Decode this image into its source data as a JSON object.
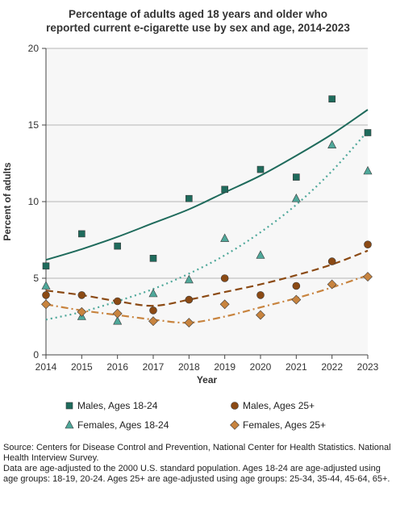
{
  "chart_data": {
    "type": "scatter",
    "title": [
      "Percentage of adults aged 18 years and older who",
      "reported current e-cigarette use by sex and age, 2014-2023"
    ],
    "xlabel": "Year",
    "ylabel": "Percent of adults",
    "x": [
      2014,
      2015,
      2016,
      2017,
      2018,
      2019,
      2020,
      2021,
      2022,
      2023
    ],
    "xlim": [
      2014,
      2023
    ],
    "ylim": [
      0,
      20
    ],
    "yticks": [
      0,
      5,
      10,
      15,
      20
    ],
    "grid": "horizontal",
    "legend_position": "bottom",
    "series": [
      {
        "name": "Males, Ages 18-24",
        "marker": "square",
        "color": "#1f6b5c",
        "values": [
          5.8,
          7.9,
          7.1,
          6.3,
          10.2,
          10.8,
          12.1,
          11.6,
          16.7,
          14.5
        ],
        "trend": [
          6.2,
          6.9,
          7.7,
          8.6,
          9.5,
          10.6,
          11.7,
          13.0,
          14.4,
          16.0
        ],
        "trend_style": "solid"
      },
      {
        "name": "Males, Ages 25+",
        "marker": "circle",
        "color": "#8b4a14",
        "values": [
          3.9,
          3.9,
          3.5,
          2.9,
          3.6,
          5.0,
          3.9,
          4.5,
          6.1,
          7.2
        ],
        "trend": [
          4.2,
          3.9,
          3.5,
          3.2,
          3.6,
          4.1,
          4.6,
          5.2,
          5.9,
          6.8
        ],
        "trend_style": "dashed"
      },
      {
        "name": "Females, Ages 18-24",
        "marker": "triangle",
        "color": "#4fa89a",
        "values": [
          4.5,
          2.5,
          2.2,
          4.0,
          4.9,
          7.6,
          6.5,
          10.2,
          13.7,
          12.0
        ],
        "trend": [
          2.3,
          2.8,
          3.5,
          4.3,
          5.3,
          6.5,
          8.0,
          9.8,
          12.0,
          14.6
        ],
        "trend_style": "dotted"
      },
      {
        "name": "Females, Ages 25+",
        "marker": "diamond",
        "color": "#c8843f",
        "values": [
          3.3,
          2.8,
          2.7,
          2.2,
          2.1,
          3.3,
          2.6,
          3.6,
          4.6,
          5.1
        ],
        "trend": [
          3.3,
          2.9,
          2.6,
          2.3,
          2.1,
          2.5,
          3.1,
          3.7,
          4.4,
          5.2
        ],
        "trend_style": "dash-dot"
      }
    ]
  },
  "source": [
    "Source: Centers for Disease Control and Prevention, National Center for Health Statistics. National Health Interview Survey.",
    "Data are age-adjusted to the 2000 U.S. standard population. Ages 18-24 are age-adjusted using age groups: 18-19, 20-24. Ages 25+ are age-adjusted using age groups: 25-34, 35-44, 45-64, 65+."
  ]
}
